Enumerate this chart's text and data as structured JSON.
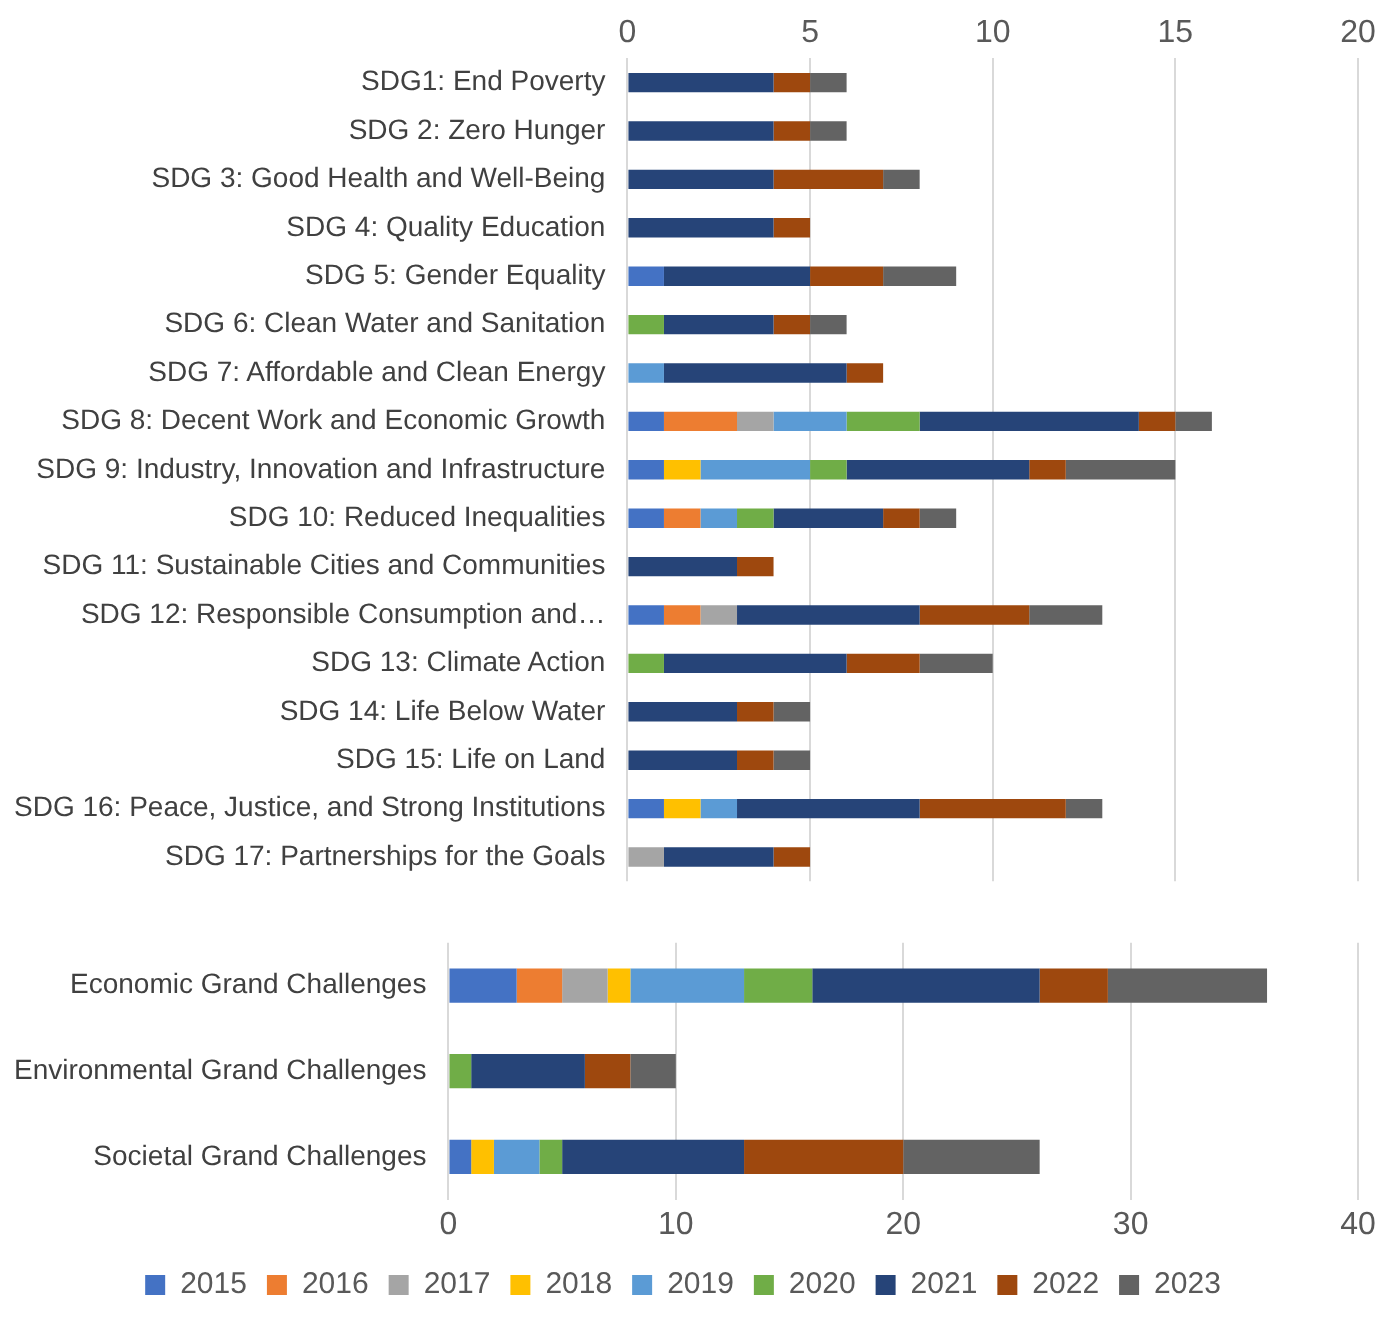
{
  "chart_data": [
    {
      "type": "bar",
      "orientation": "horizontal",
      "stacked": true,
      "grid": "x",
      "legend": false,
      "xlim": [
        0,
        20
      ],
      "xticks": [
        0,
        5,
        10,
        15,
        20
      ],
      "categories": [
        "SDG1: End Poverty",
        "SDG 2: Zero Hunger",
        "SDG 3: Good Health and Well-Being",
        "SDG 4: Quality Education",
        "SDG 5: Gender Equality",
        "SDG 6: Clean Water and Sanitation",
        "SDG 7: Affordable and Clean Energy",
        "SDG 8: Decent Work and Economic Growth",
        "SDG 9: Industry, Innovation and Infrastructure",
        "SDG 10: Reduced Inequalities",
        "SDG 11: Sustainable Cities and Communities",
        "SDG 12: Responsible Consumption and…",
        "SDG 13: Climate Action",
        "SDG 14: Life Below Water",
        "SDG 15: Life on Land",
        "SDG 16: Peace, Justice, and Strong Institutions",
        "SDG 17: Partnerships for the Goals"
      ],
      "series": [
        {
          "color": "#4472c4",
          "values": [
            0,
            0,
            0,
            0,
            1,
            0,
            0,
            1,
            1,
            1,
            0,
            1,
            0,
            0,
            0,
            1,
            0
          ]
        },
        {
          "color": "#ed7d31",
          "values": [
            0,
            0,
            0,
            0,
            0,
            0,
            0,
            2,
            0,
            1,
            0,
            1,
            0,
            0,
            0,
            0,
            0
          ]
        },
        {
          "color": "#a5a5a5",
          "values": [
            0,
            0,
            0,
            0,
            0,
            0,
            0,
            1,
            0,
            0,
            0,
            1,
            0,
            0,
            0,
            0,
            1
          ]
        },
        {
          "color": "#ffc000",
          "values": [
            0,
            0,
            0,
            0,
            0,
            0,
            0,
            0,
            1,
            0,
            0,
            0,
            0,
            0,
            0,
            1,
            0
          ]
        },
        {
          "color": "#5b9bd5",
          "values": [
            0,
            0,
            0,
            0,
            0,
            0,
            1,
            2,
            3,
            1,
            0,
            0,
            0,
            0,
            0,
            1,
            0
          ]
        },
        {
          "color": "#70ad47",
          "values": [
            0,
            0,
            0,
            0,
            0,
            1,
            0,
            2,
            1,
            1,
            0,
            0,
            1,
            0,
            0,
            0,
            0
          ]
        },
        {
          "color": "#264478",
          "values": [
            4,
            4,
            4,
            4,
            4,
            3,
            5,
            6,
            5,
            3,
            3,
            5,
            5,
            3,
            3,
            5,
            3
          ]
        },
        {
          "color": "#9e480e",
          "values": [
            1,
            1,
            3,
            1,
            2,
            1,
            1,
            1,
            1,
            1,
            1,
            3,
            2,
            1,
            1,
            4,
            1
          ]
        },
        {
          "color": "#636363",
          "values": [
            1,
            1,
            1,
            0,
            2,
            1,
            0,
            1,
            3,
            1,
            0,
            2,
            2,
            1,
            1,
            1,
            0
          ]
        }
      ]
    },
    {
      "type": "bar",
      "orientation": "horizontal",
      "stacked": true,
      "grid": "x",
      "legend": "bottom",
      "xlim": [
        0,
        40
      ],
      "xticks": [
        0,
        10,
        20,
        30,
        40
      ],
      "categories": [
        "Economic Grand Challenges",
        "Environmental Grand Challenges",
        "Societal Grand Challenges"
      ],
      "series": [
        {
          "name": "2015",
          "color": "#4472c4",
          "values": [
            3,
            0,
            1
          ]
        },
        {
          "name": "2016",
          "color": "#ed7d31",
          "values": [
            2,
            0,
            0
          ]
        },
        {
          "name": "2017",
          "color": "#a5a5a5",
          "values": [
            2,
            0,
            0
          ]
        },
        {
          "name": "2018",
          "color": "#ffc000",
          "values": [
            1,
            0,
            1
          ]
        },
        {
          "name": "2019",
          "color": "#5b9bd5",
          "values": [
            5,
            0,
            2
          ]
        },
        {
          "name": "2020",
          "color": "#70ad47",
          "values": [
            3,
            1,
            1
          ]
        },
        {
          "name": "2021",
          "color": "#264478",
          "values": [
            10,
            5,
            8
          ]
        },
        {
          "name": "2022",
          "color": "#9e480e",
          "values": [
            3,
            2,
            7
          ]
        },
        {
          "name": "2023",
          "color": "#636363",
          "values": [
            7,
            2,
            6
          ]
        }
      ]
    }
  ]
}
